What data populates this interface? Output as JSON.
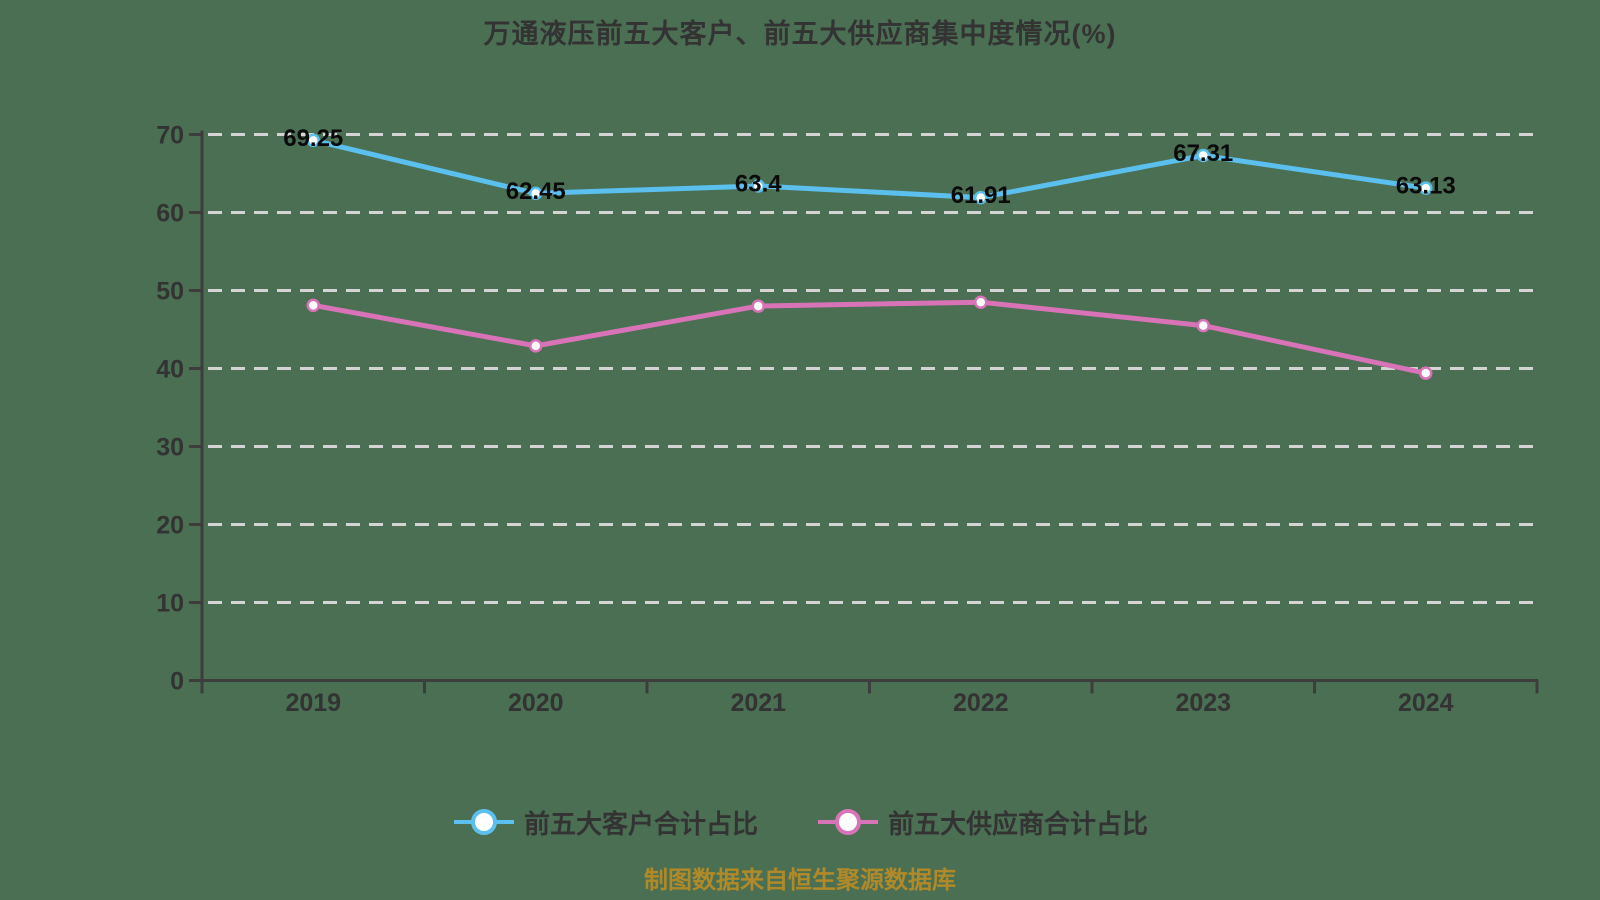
{
  "title": "万通液压前五大客户、前五大供应商集中度情况(%)",
  "caption": "制图数据来自恒生聚源数据库",
  "colors": {
    "background": "#4a6f52",
    "axis": "#3d3d3d",
    "gridline": "#d4d4d4",
    "tick_label": "#333333",
    "data_label": "#0a0a0a",
    "customer_line": "#5bc0ee",
    "supplier_line": "#d973b8",
    "marker_fill": "#ffffff",
    "caption_text": "#b08a28"
  },
  "chart_data": {
    "type": "line",
    "title": "万通液压前五大客户、前五大供应商集中度情况(%)",
    "categories": [
      "2019",
      "2020",
      "2021",
      "2022",
      "2023",
      "2024"
    ],
    "series": [
      {
        "name": "前五大客户合计占比",
        "color": "#5bc0ee",
        "values": [
          69.25,
          62.45,
          63.4,
          61.91,
          67.31,
          63.13
        ],
        "labels": [
          "69.25",
          "62.45",
          "63.4",
          "61.91",
          "67.31",
          "63.13"
        ],
        "labels_visible": true
      },
      {
        "name": "前五大供应商合计占比",
        "color": "#d973b8",
        "values": [
          48.1,
          42.9,
          48.0,
          48.5,
          45.5,
          39.4
        ],
        "labels": null,
        "labels_visible": false
      }
    ],
    "ylim": [
      0,
      70
    ],
    "ytick_step": 10,
    "yticks": [
      "0",
      "10",
      "20",
      "30",
      "40",
      "50",
      "60",
      "70"
    ],
    "grid": "horizontal-dashed",
    "legend_position": "bottom",
    "xlabel": "",
    "ylabel": ""
  }
}
